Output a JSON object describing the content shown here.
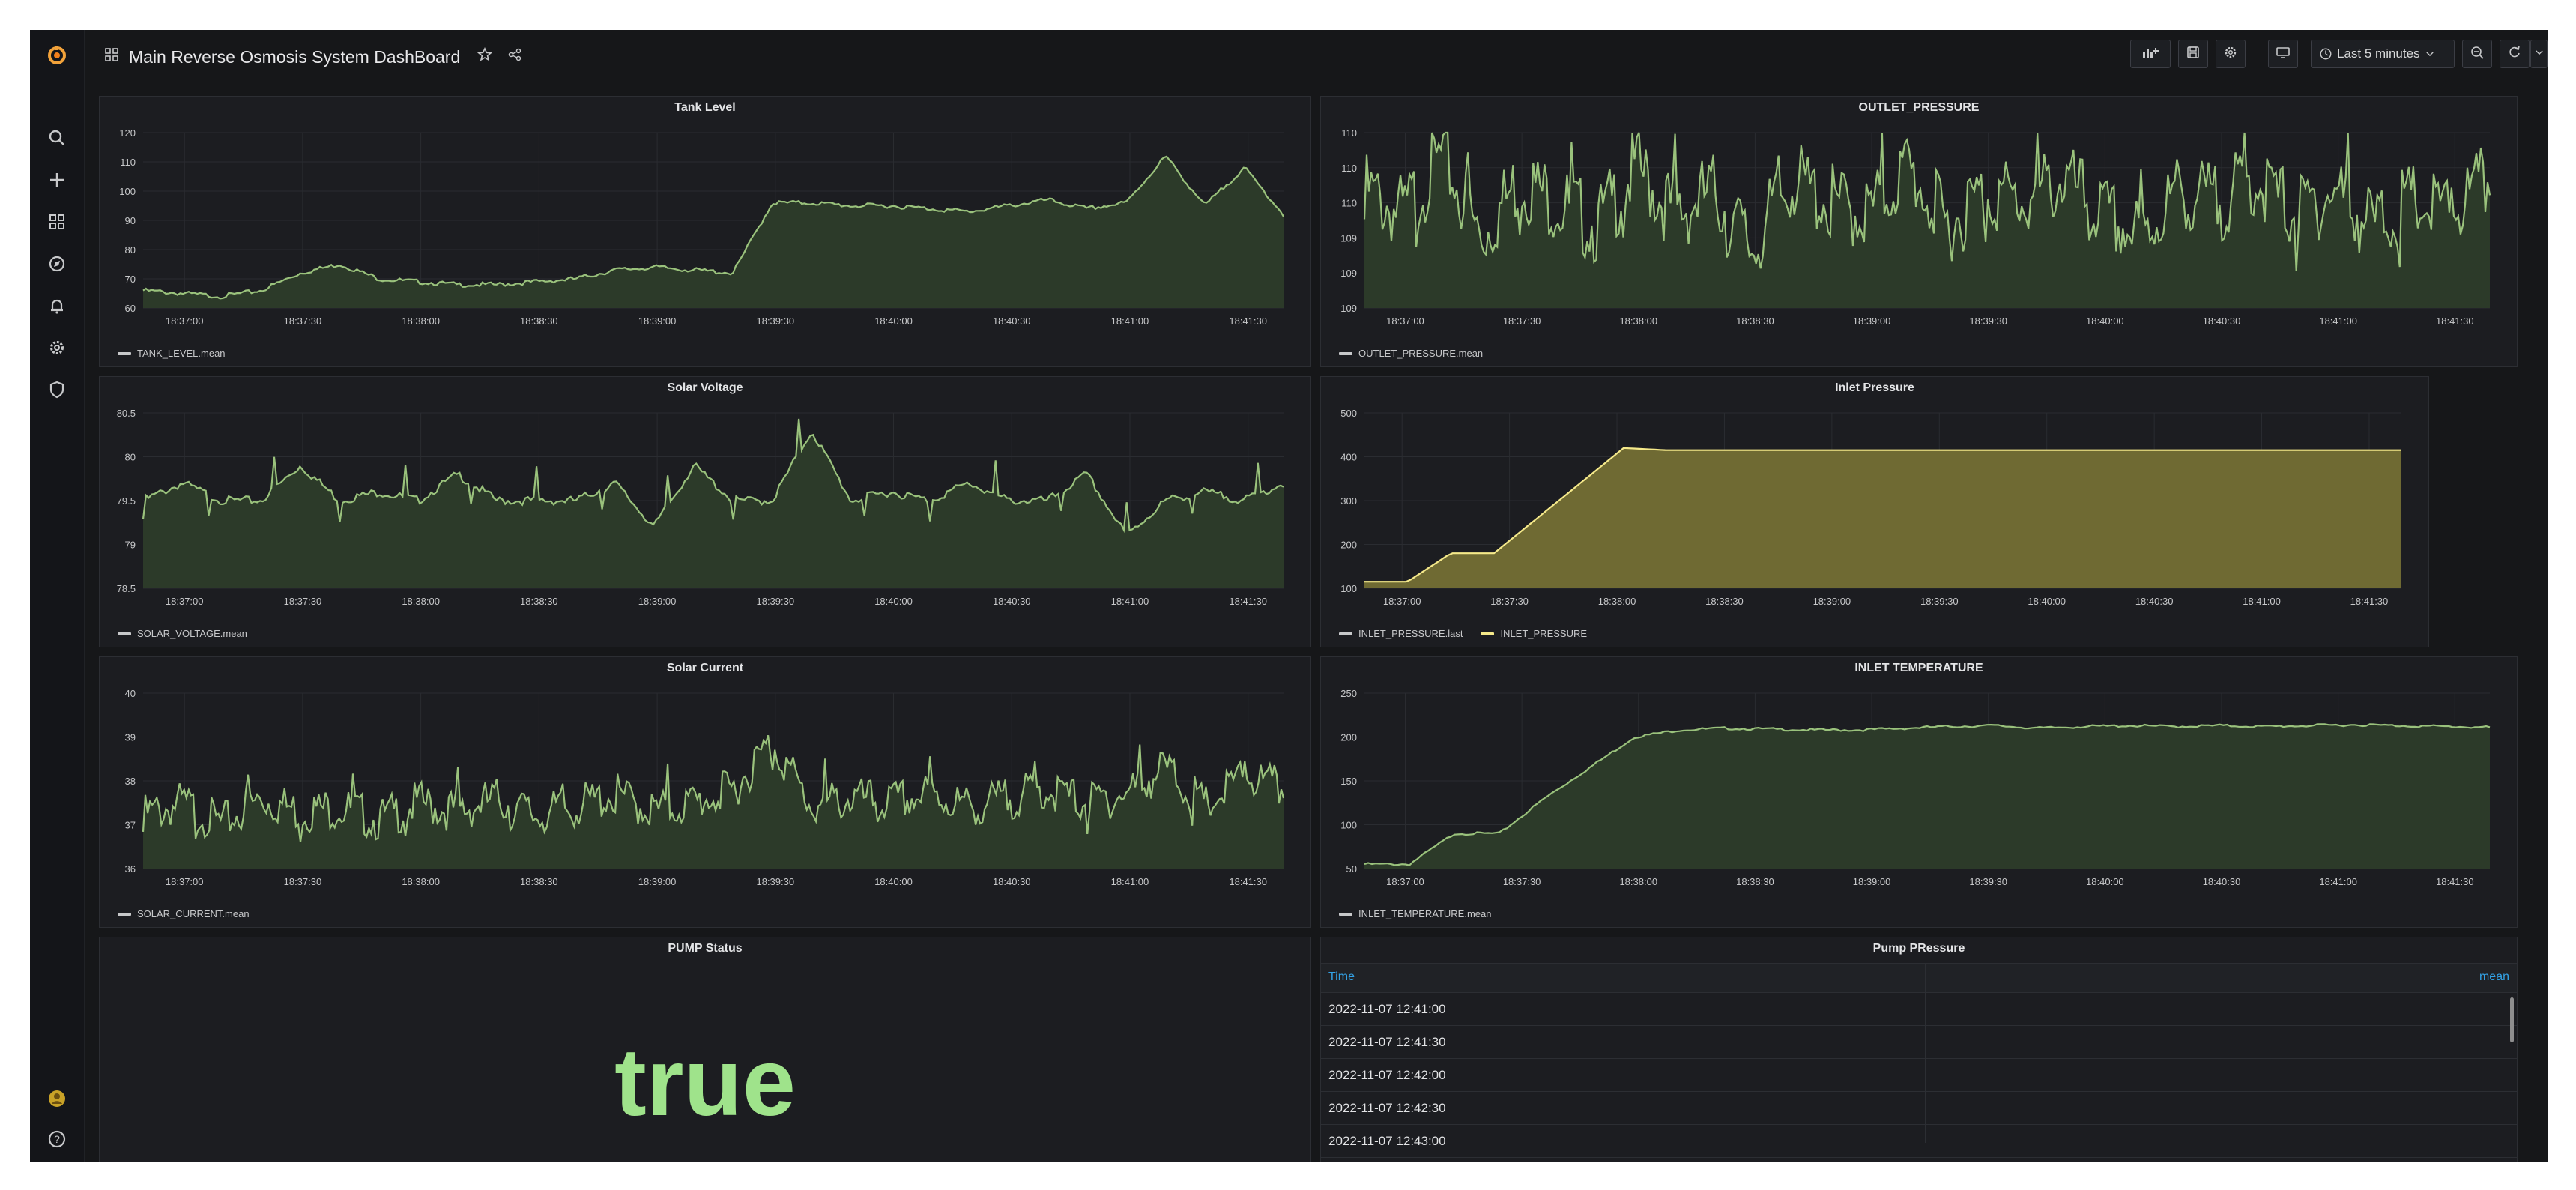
{
  "topbar": {
    "title": "Main Reverse Osmosis System DashBoard",
    "time_range": "Last 5 minutes"
  },
  "icons": {
    "logo": "grafana-logo-icon",
    "sidebar": [
      "search-icon",
      "plus-icon",
      "dashboards-icon",
      "explore-icon",
      "alerting-icon",
      "gear-icon",
      "shield-icon"
    ],
    "sidebar_bottom": [
      "user-avatar-icon",
      "help-icon"
    ],
    "toolbar": [
      "add-panel-icon",
      "save-icon",
      "settings-icon",
      "tv-mode-icon",
      "clock-icon",
      "chevron-down-icon",
      "zoom-out-icon",
      "refresh-icon",
      "chevron-down-icon"
    ]
  },
  "colors": {
    "accent_green": "#9ac27c",
    "area_green": "#2c3a29",
    "accent_yellow": "#f5e98a",
    "area_yellow": "#6f6a33",
    "stat_green": "#9fe38b",
    "table_header": "#33a2e5"
  },
  "panels": {
    "tank_level": {
      "title": "Tank Level",
      "legend": [
        {
          "label": "TANK_LEVEL.mean",
          "color": "#c7c8ca"
        }
      ],
      "chart_data": {
        "type": "area",
        "title": "Tank Level",
        "yticks": [
          "120",
          "110",
          "100",
          "90",
          "80",
          "70",
          "60"
        ],
        "ylim": [
          60,
          120
        ],
        "xticks": [
          "18:37:00",
          "18:37:30",
          "18:38:00",
          "18:38:30",
          "18:39:00",
          "18:39:30",
          "18:40:00",
          "18:40:30",
          "18:41:00",
          "18:41:30"
        ],
        "series": [
          {
            "name": "TANK_LEVEL.mean",
            "values": [
              66,
              65,
              64,
              66,
              72,
              75,
              70,
              69,
              68,
              68,
              69,
              70,
              73,
              74,
              73,
              72,
              96,
              96,
              95,
              95,
              94,
              93,
              95,
              97,
              94,
              96,
              112,
              95,
              108,
              92
            ]
          }
        ]
      }
    },
    "outlet_pressure": {
      "title": "OUTLET_PRESSURE",
      "legend": [
        {
          "label": "OUTLET_PRESSURE.mean",
          "color": "#c7c8ca"
        }
      ],
      "chart_data": {
        "type": "line",
        "title": "OUTLET_PRESSURE",
        "yticks": [
          "110",
          "110",
          "110",
          "109",
          "109",
          "109"
        ],
        "ylim": [
          108.8,
          110.3
        ],
        "xticks": [
          "18:37:00",
          "18:37:30",
          "18:38:00",
          "18:38:30",
          "18:39:00",
          "18:39:30",
          "18:40:00",
          "18:40:30",
          "18:41:00",
          "18:41:30"
        ],
        "series": [
          {
            "name": "OUTLET_PRESSURE.mean",
            "values": [
              109.8,
              109.6,
              110.1,
              109.4,
              109.9,
              109.7,
              109.5,
              110.0,
              109.6,
              109.8,
              109.3,
              109.9,
              109.7,
              109.6,
              110.0,
              109.5,
              109.8,
              109.7,
              109.9,
              109.6,
              109.4,
              109.8,
              109.7,
              109.9,
              109.6,
              109.8,
              109.5,
              109.7,
              109.6,
              109.9
            ]
          }
        ]
      }
    },
    "solar_voltage": {
      "title": "Solar Voltage",
      "legend": [
        {
          "label": "SOLAR_VOLTAGE.mean",
          "color": "#c7c8ca"
        }
      ],
      "chart_data": {
        "type": "line",
        "title": "Solar Voltage",
        "yticks": [
          "80.5",
          "80",
          "79.5",
          "79",
          "78.5"
        ],
        "ylim": [
          78.5,
          80.5
        ],
        "xticks": [
          "18:37:00",
          "18:37:30",
          "18:38:00",
          "18:38:30",
          "18:39:00",
          "18:39:30",
          "18:40:00",
          "18:40:30",
          "18:41:00",
          "18:41:30"
        ],
        "series": [
          {
            "name": "SOLAR_VOLTAGE.mean",
            "values": [
              79.5,
              79.7,
              79.5,
              79.5,
              79.9,
              79.5,
              79.6,
              79.5,
              79.8,
              79.5,
              79.5,
              79.5,
              79.7,
              79.2,
              79.9,
              79.5,
              79.5,
              80.3,
              79.5,
              79.6,
              79.5,
              79.7,
              79.5,
              79.5,
              79.8,
              79.1,
              79.5,
              79.6,
              79.5,
              79.7
            ]
          }
        ]
      }
    },
    "inlet_pressure": {
      "title": "Inlet Pressure",
      "legend": [
        {
          "label": "INLET_PRESSURE.last",
          "color": "#c7c8ca"
        },
        {
          "label": "INLET_PRESSURE",
          "color": "#f5e98a"
        }
      ],
      "chart_data": {
        "type": "area",
        "title": "Inlet Pressure",
        "yticks": [
          "500",
          "400",
          "300",
          "200",
          "100"
        ],
        "ylim": [
          100,
          500
        ],
        "xticks": [
          "18:37:00",
          "18:37:30",
          "18:38:00",
          "18:38:30",
          "18:39:00",
          "18:39:30",
          "18:40:00",
          "18:40:30",
          "18:41:00",
          "18:41:30"
        ],
        "series": [
          {
            "name": "INLET_PRESSURE",
            "values": [
              115,
              115,
              180,
              180,
              260,
              340,
              420,
              415,
              415,
              415,
              415,
              415,
              415,
              415,
              415,
              415,
              415,
              415,
              415,
              415,
              415,
              415,
              415,
              415,
              415
            ]
          }
        ]
      }
    },
    "solar_current": {
      "title": "Solar Current",
      "legend": [
        {
          "label": "SOLAR_CURRENT.mean",
          "color": "#c7c8ca"
        }
      ],
      "chart_data": {
        "type": "line",
        "title": "Solar Current",
        "yticks": [
          "40",
          "39",
          "38",
          "37",
          "36"
        ],
        "ylim": [
          36,
          40
        ],
        "xticks": [
          "18:37:00",
          "18:37:30",
          "18:38:00",
          "18:38:30",
          "18:39:00",
          "18:39:30",
          "18:40:00",
          "18:40:30",
          "18:41:00",
          "18:41:30"
        ],
        "series": [
          {
            "name": "SOLAR_CURRENT.mean",
            "values": [
              37.2,
              37.5,
              37.0,
              37.6,
              37.3,
              37.4,
              37.1,
              37.5,
              37.3,
              37.6,
              37.2,
              37.4,
              37.7,
              37.3,
              37.5,
              37.8,
              38.9,
              37.4,
              37.6,
              37.5,
              37.7,
              37.4,
              37.6,
              37.8,
              37.5,
              37.7,
              38.3,
              37.4,
              38.1,
              37.8
            ]
          }
        ]
      }
    },
    "inlet_temperature": {
      "title": "INLET TEMPERATURE",
      "legend": [
        {
          "label": "INLET_TEMPERATURE.mean",
          "color": "#c7c8ca"
        }
      ],
      "chart_data": {
        "type": "area",
        "title": "INLET TEMPERATURE",
        "yticks": [
          "250",
          "200",
          "150",
          "100",
          "50"
        ],
        "ylim": [
          50,
          250
        ],
        "xticks": [
          "18:37:00",
          "18:37:30",
          "18:38:00",
          "18:38:30",
          "18:39:00",
          "18:39:30",
          "18:40:00",
          "18:40:30",
          "18:41:00",
          "18:41:30"
        ],
        "series": [
          {
            "name": "INLET_TEMPERATURE.mean",
            "values": [
              55,
              55,
              90,
              90,
              130,
              165,
              200,
              208,
              210,
              209,
              208,
              208,
              210,
              212,
              213,
              210,
              212,
              213,
              212,
              213,
              212,
              213,
              214,
              213,
              212,
              211
            ]
          }
        ]
      }
    },
    "pump_status": {
      "title": "PUMP Status",
      "value": "true"
    },
    "pump_pressure": {
      "title": "Pump PRessure",
      "columns": [
        "Time",
        "mean"
      ],
      "rows": [
        {
          "time": "2022-11-07 12:41:00",
          "mean": ""
        },
        {
          "time": "2022-11-07 12:41:30",
          "mean": ""
        },
        {
          "time": "2022-11-07 12:42:00",
          "mean": ""
        },
        {
          "time": "2022-11-07 12:42:30",
          "mean": ""
        },
        {
          "time": "2022-11-07 12:43:00",
          "mean": ""
        }
      ]
    }
  }
}
